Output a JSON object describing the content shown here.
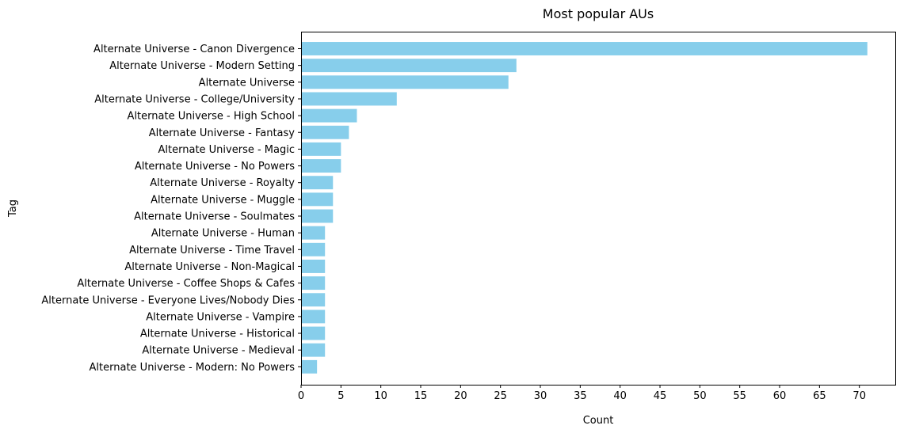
{
  "chart_data": {
    "type": "bar",
    "orientation": "horizontal",
    "title": "Most popular AUs",
    "xlabel": "Count",
    "ylabel": "Tag",
    "xlim": [
      0,
      74.5
    ],
    "xticks": [
      0,
      5,
      10,
      15,
      20,
      25,
      30,
      35,
      40,
      45,
      50,
      55,
      60,
      65,
      70
    ],
    "grid": false,
    "bar_color": "#87ceeb",
    "categories": [
      "Alternate Universe - Canon Divergence",
      "Alternate Universe - Modern Setting",
      "Alternate Universe",
      "Alternate Universe - College/University",
      "Alternate Universe - High School",
      "Alternate Universe - Fantasy",
      "Alternate Universe - Magic",
      "Alternate Universe - No Powers",
      "Alternate Universe - Royalty",
      "Alternate Universe - Muggle",
      "Alternate Universe - Soulmates",
      "Alternate Universe - Human",
      "Alternate Universe - Time Travel",
      "Alternate Universe - Non-Magical",
      "Alternate Universe - Coffee Shops & Cafes",
      "Alternate Universe - Everyone Lives/Nobody Dies",
      "Alternate Universe - Vampire",
      "Alternate Universe - Historical",
      "Alternate Universe - Medieval",
      "Alternate Universe - Modern: No Powers"
    ],
    "values": [
      71,
      27,
      26,
      12,
      7,
      6,
      5,
      5,
      4,
      4,
      4,
      3,
      3,
      3,
      3,
      3,
      3,
      3,
      3,
      2
    ]
  }
}
